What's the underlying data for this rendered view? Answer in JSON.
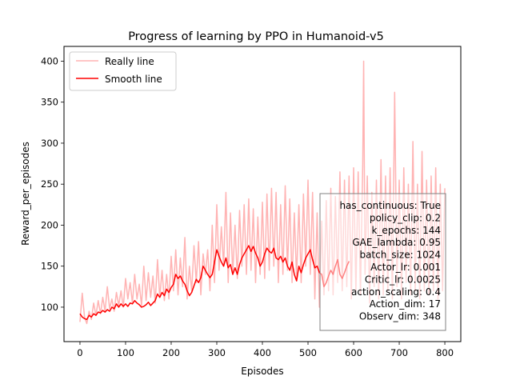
{
  "chart_data": {
    "type": "line",
    "title": "Progress of learning by PPO in Humanoid-v5",
    "xlabel": "Episodes",
    "ylabel": "Reward_per_episodes",
    "xlim": [
      -35,
      835
    ],
    "ylim": [
      58,
      418
    ],
    "xticks": [
      0,
      100,
      200,
      300,
      400,
      500,
      600,
      700,
      800
    ],
    "yticks": [
      100,
      150,
      200,
      250,
      300,
      350,
      400
    ],
    "grid": false,
    "legend": {
      "placement": "top-left",
      "entries": [
        "Really line",
        "Smooth line"
      ]
    },
    "series": [
      {
        "name": "Really line",
        "color": "#ffb3b3",
        "points": [
          [
            0,
            82
          ],
          [
            5,
            117
          ],
          [
            10,
            88
          ],
          [
            15,
            80
          ],
          [
            20,
            95
          ],
          [
            25,
            85
          ],
          [
            30,
            105
          ],
          [
            35,
            90
          ],
          [
            40,
            108
          ],
          [
            45,
            92
          ],
          [
            50,
            112
          ],
          [
            55,
            95
          ],
          [
            60,
            125
          ],
          [
            65,
            98
          ],
          [
            70,
            110
          ],
          [
            75,
            95
          ],
          [
            80,
            118
          ],
          [
            85,
            102
          ],
          [
            90,
            120
          ],
          [
            95,
            100
          ],
          [
            100,
            135
          ],
          [
            105,
            110
          ],
          [
            110,
            130
          ],
          [
            115,
            105
          ],
          [
            120,
            140
          ],
          [
            125,
            110
          ],
          [
            130,
            128
          ],
          [
            135,
            102
          ],
          [
            140,
            150
          ],
          [
            145,
            108
          ],
          [
            150,
            142
          ],
          [
            155,
            112
          ],
          [
            160,
            138
          ],
          [
            165,
            105
          ],
          [
            170,
            158
          ],
          [
            175,
            112
          ],
          [
            180,
            145
          ],
          [
            185,
            108
          ],
          [
            190,
            140
          ],
          [
            195,
            110
          ],
          [
            200,
            162
          ],
          [
            205,
            120
          ],
          [
            210,
            170
          ],
          [
            215,
            115
          ],
          [
            220,
            160
          ],
          [
            225,
            125
          ],
          [
            230,
            185
          ],
          [
            235,
            110
          ],
          [
            240,
            150
          ],
          [
            245,
            120
          ],
          [
            250,
            175
          ],
          [
            255,
            130
          ],
          [
            260,
            180
          ],
          [
            265,
            115
          ],
          [
            270,
            165
          ],
          [
            275,
            140
          ],
          [
            280,
            170
          ],
          [
            285,
            120
          ],
          [
            290,
            200
          ],
          [
            295,
            130
          ],
          [
            300,
            225
          ],
          [
            305,
            145
          ],
          [
            310,
            198
          ],
          [
            315,
            150
          ],
          [
            320,
            240
          ],
          [
            325,
            130
          ],
          [
            330,
            215
          ],
          [
            335,
            140
          ],
          [
            340,
            200
          ],
          [
            345,
            135
          ],
          [
            350,
            218
          ],
          [
            355,
            150
          ],
          [
            360,
            225
          ],
          [
            365,
            140
          ],
          [
            370,
            232
          ],
          [
            375,
            145
          ],
          [
            380,
            220
          ],
          [
            385,
            130
          ],
          [
            390,
            210
          ],
          [
            395,
            140
          ],
          [
            400,
            228
          ],
          [
            405,
            135
          ],
          [
            410,
            238
          ],
          [
            415,
            145
          ],
          [
            420,
            245
          ],
          [
            425,
            150
          ],
          [
            430,
            240
          ],
          [
            435,
            130
          ],
          [
            440,
            225
          ],
          [
            445,
            140
          ],
          [
            450,
            248
          ],
          [
            455,
            145
          ],
          [
            460,
            232
          ],
          [
            465,
            130
          ],
          [
            470,
            215
          ],
          [
            475,
            135
          ],
          [
            480,
            225
          ],
          [
            485,
            130
          ],
          [
            490,
            238
          ],
          [
            495,
            150
          ],
          [
            500,
            255
          ],
          [
            505,
            140
          ],
          [
            510,
            240
          ],
          [
            515,
            110
          ],
          [
            520,
            215
          ],
          [
            525,
            100
          ],
          [
            530,
            205
          ],
          [
            535,
            115
          ],
          [
            540,
            230
          ],
          [
            545,
            120
          ],
          [
            550,
            245
          ],
          [
            555,
            115
          ],
          [
            560,
            235
          ],
          [
            565,
            130
          ],
          [
            570,
            265
          ],
          [
            575,
            120
          ],
          [
            580,
            255
          ],
          [
            585,
            125
          ],
          [
            590,
            260
          ],
          [
            595,
            110
          ],
          [
            600,
            270
          ],
          [
            605,
            120
          ],
          [
            610,
            265
          ],
          [
            615,
            115
          ],
          [
            620,
            275
          ],
          [
            622,
            400
          ],
          [
            625,
            140
          ],
          [
            630,
            260
          ],
          [
            635,
            105
          ],
          [
            640,
            240
          ],
          [
            645,
            125
          ],
          [
            650,
            255
          ],
          [
            655,
            110
          ],
          [
            660,
            280
          ],
          [
            665,
            115
          ],
          [
            670,
            260
          ],
          [
            675,
            120
          ],
          [
            680,
            270
          ],
          [
            685,
            110
          ],
          [
            690,
            362
          ],
          [
            695,
            125
          ],
          [
            700,
            255
          ],
          [
            705,
            110
          ],
          [
            710,
            270
          ],
          [
            715,
            130
          ],
          [
            720,
            250
          ],
          [
            725,
            115
          ],
          [
            730,
            302
          ],
          [
            735,
            120
          ],
          [
            740,
            250
          ],
          [
            745,
            110
          ],
          [
            750,
            290
          ],
          [
            755,
            120
          ],
          [
            760,
            255
          ],
          [
            765,
            115
          ],
          [
            770,
            260
          ],
          [
            775,
            120
          ],
          [
            780,
            270
          ],
          [
            785,
            110
          ],
          [
            790,
            250
          ],
          [
            795,
            120
          ],
          [
            800,
            245
          ]
        ]
      },
      {
        "name": "Smooth line",
        "color": "#ff0000",
        "points": [
          [
            0,
            92
          ],
          [
            5,
            88
          ],
          [
            10,
            86
          ],
          [
            15,
            85
          ],
          [
            20,
            90
          ],
          [
            25,
            88
          ],
          [
            30,
            92
          ],
          [
            35,
            90
          ],
          [
            40,
            94
          ],
          [
            45,
            93
          ],
          [
            50,
            96
          ],
          [
            55,
            94
          ],
          [
            60,
            97
          ],
          [
            65,
            95
          ],
          [
            70,
            100
          ],
          [
            75,
            98
          ],
          [
            80,
            104
          ],
          [
            85,
            100
          ],
          [
            90,
            104
          ],
          [
            95,
            101
          ],
          [
            100,
            104
          ],
          [
            105,
            101
          ],
          [
            110,
            105
          ],
          [
            115,
            104
          ],
          [
            120,
            108
          ],
          [
            125,
            105
          ],
          [
            130,
            103
          ],
          [
            135,
            100
          ],
          [
            140,
            101
          ],
          [
            145,
            103
          ],
          [
            150,
            106
          ],
          [
            155,
            102
          ],
          [
            160,
            105
          ],
          [
            165,
            108
          ],
          [
            170,
            116
          ],
          [
            175,
            112
          ],
          [
            180,
            118
          ],
          [
            185,
            114
          ],
          [
            190,
            122
          ],
          [
            195,
            118
          ],
          [
            200,
            124
          ],
          [
            205,
            128
          ],
          [
            210,
            140
          ],
          [
            215,
            135
          ],
          [
            220,
            138
          ],
          [
            225,
            132
          ],
          [
            230,
            128
          ],
          [
            235,
            120
          ],
          [
            240,
            114
          ],
          [
            245,
            118
          ],
          [
            250,
            126
          ],
          [
            255,
            134
          ],
          [
            260,
            130
          ],
          [
            265,
            136
          ],
          [
            270,
            150
          ],
          [
            275,
            145
          ],
          [
            280,
            140
          ],
          [
            285,
            136
          ],
          [
            290,
            140
          ],
          [
            295,
            155
          ],
          [
            300,
            170
          ],
          [
            305,
            162
          ],
          [
            310,
            155
          ],
          [
            315,
            150
          ],
          [
            320,
            160
          ],
          [
            325,
            148
          ],
          [
            330,
            152
          ],
          [
            335,
            140
          ],
          [
            340,
            148
          ],
          [
            345,
            140
          ],
          [
            350,
            152
          ],
          [
            355,
            160
          ],
          [
            360,
            165
          ],
          [
            365,
            170
          ],
          [
            370,
            175
          ],
          [
            375,
            168
          ],
          [
            380,
            174
          ],
          [
            385,
            166
          ],
          [
            390,
            160
          ],
          [
            395,
            150
          ],
          [
            400,
            155
          ],
          [
            405,
            165
          ],
          [
            410,
            172
          ],
          [
            415,
            168
          ],
          [
            420,
            166
          ],
          [
            425,
            172
          ],
          [
            430,
            160
          ],
          [
            435,
            158
          ],
          [
            440,
            162
          ],
          [
            445,
            155
          ],
          [
            450,
            160
          ],
          [
            455,
            150
          ],
          [
            460,
            145
          ],
          [
            465,
            155
          ],
          [
            470,
            140
          ],
          [
            475,
            132
          ],
          [
            480,
            150
          ],
          [
            485,
            142
          ],
          [
            490,
            152
          ],
          [
            495,
            160
          ],
          [
            500,
            165
          ],
          [
            505,
            170
          ],
          [
            510,
            158
          ],
          [
            515,
            148
          ],
          [
            520,
            150
          ],
          [
            525,
            142
          ],
          [
            530,
            140
          ],
          [
            535,
            125
          ],
          [
            540,
            130
          ],
          [
            545,
            138
          ],
          [
            550,
            145
          ],
          [
            555,
            140
          ],
          [
            560,
            150
          ],
          [
            565,
            158
          ],
          [
            570,
            140
          ],
          [
            575,
            135
          ],
          [
            580,
            142
          ],
          [
            585,
            150
          ],
          [
            590,
            156
          ]
        ]
      }
    ],
    "annotation": {
      "placement": "bottom-right",
      "lines": [
        "has_continuous: True",
        "policy_clip: 0.2",
        "k_epochs: 144",
        "GAE_lambda: 0.95",
        "batch_size: 1024",
        "Actor_lr: 0.001",
        "Critic_lr: 0.0025",
        "action_scaling: 0.4",
        "Action_dim: 17",
        "Observ_dim: 348"
      ]
    }
  }
}
